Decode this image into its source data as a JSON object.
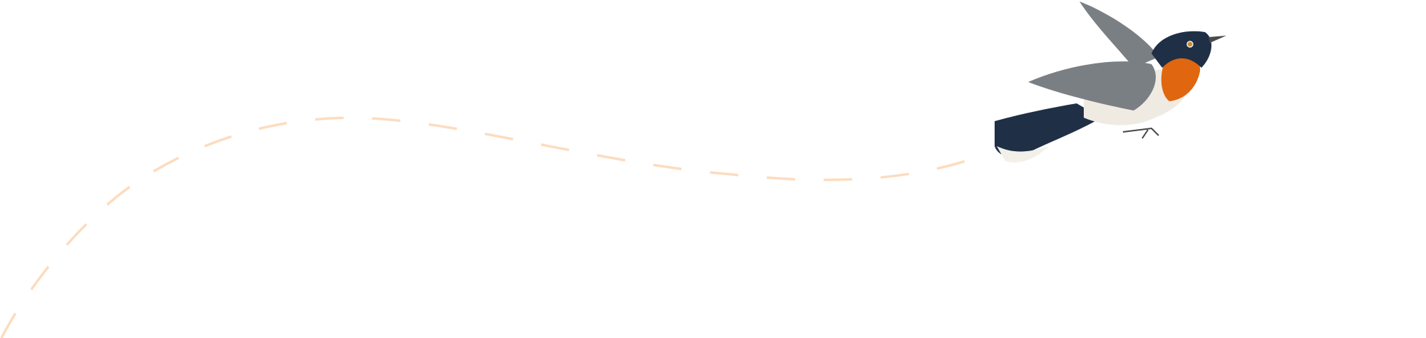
{
  "illustration": {
    "subject": "bird-in-flight",
    "flight_path_style": "dashed",
    "colors": {
      "path": "#fcdcbf",
      "bird_blue": "#1f2f45",
      "bird_throat": "#e0660f",
      "bird_belly": "#efebe3",
      "bird_wing": "#7a7f84"
    }
  }
}
